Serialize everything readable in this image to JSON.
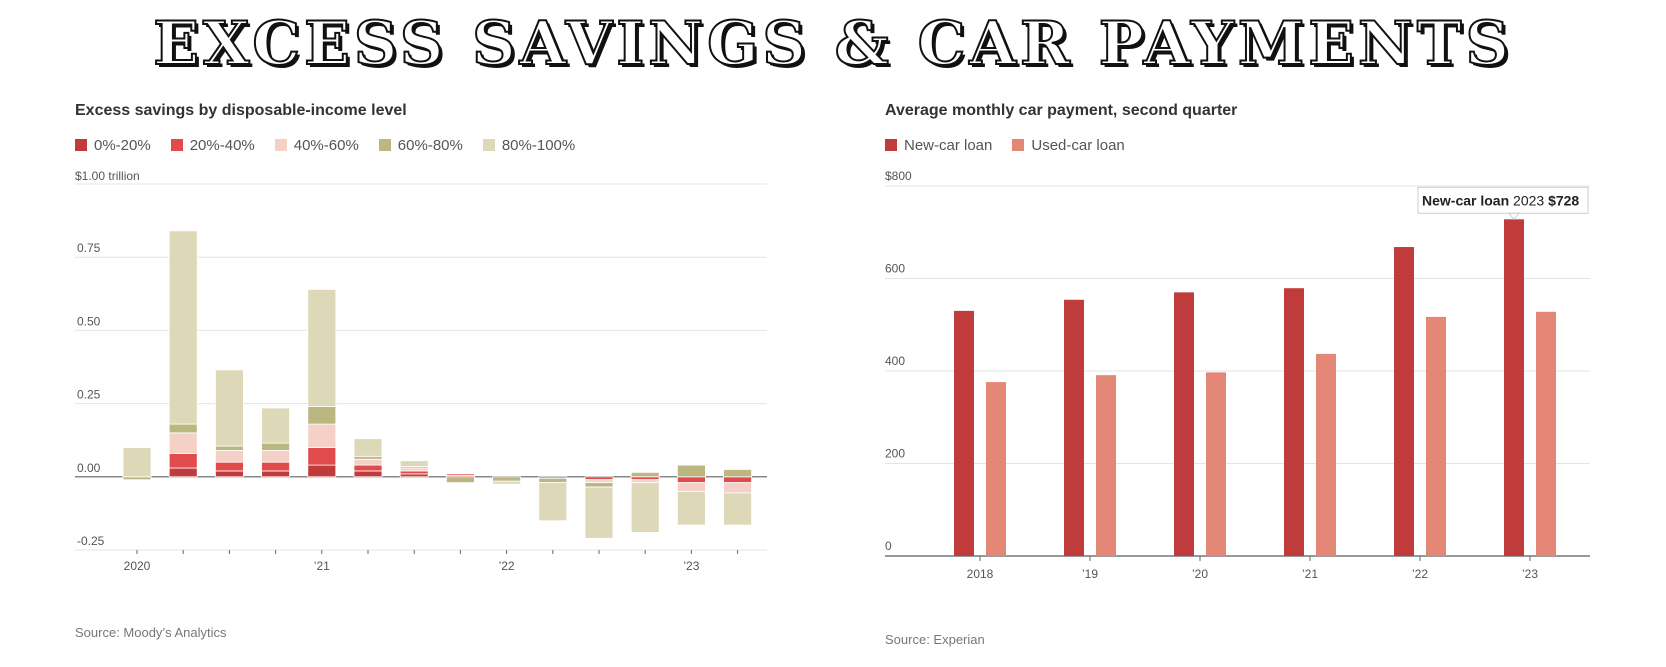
{
  "page_title": "EXCESS SAVINGS & CAR PAYMENTS",
  "chart_data": [
    {
      "type": "bar",
      "stacked": true,
      "title": "Excess savings by disposable-income level",
      "ylabel": "",
      "y_top_label": "$1.00 trillion",
      "ylim": [
        -0.25,
        1.0
      ],
      "y_ticks": [
        0.75,
        0.5,
        0.25,
        0.0,
        -0.25
      ],
      "y_tick_labels": [
        "0.75",
        "0.50",
        "0.25",
        "0.00",
        "-0.25"
      ],
      "x_tick_labels": [
        {
          "label": "2020",
          "index": 0
        },
        {
          "label": "’21",
          "index": 4
        },
        {
          "label": "’22",
          "index": 8
        },
        {
          "label": "’23",
          "index": 12
        }
      ],
      "categories": [
        "Q1 2020",
        "Q2 2020",
        "Q3 2020",
        "Q4 2020",
        "Q1 2021",
        "Q2 2021",
        "Q3 2021",
        "Q4 2021",
        "Q1 2022",
        "Q2 2022",
        "Q3 2022",
        "Q4 2022",
        "Q1 2023",
        "Q2 2023"
      ],
      "legend_position": "top-left",
      "series": [
        {
          "name": "0%-20%",
          "color": "#c03b3b",
          "values": [
            0.0,
            0.03,
            0.02,
            0.02,
            0.04,
            0.02,
            0.01,
            0.005,
            0.0,
            0.0,
            0.0,
            0.0,
            0.0,
            0.0
          ]
        },
        {
          "name": "20%-40%",
          "color": "#e24b4b",
          "values": [
            0.0,
            0.05,
            0.03,
            0.03,
            0.06,
            0.02,
            0.01,
            0.005,
            0.0,
            -0.005,
            -0.01,
            -0.01,
            -0.02,
            -0.02
          ]
        },
        {
          "name": "40%-60%",
          "color": "#f5d0c6",
          "values": [
            0.0,
            0.07,
            0.04,
            0.04,
            0.08,
            0.02,
            0.01,
            0.0,
            0.0,
            0.0,
            -0.01,
            -0.01,
            -0.03,
            -0.035
          ]
        },
        {
          "name": "60%-80%",
          "color": "#bcb780",
          "values": [
            -0.01,
            0.03,
            0.015,
            0.025,
            0.06,
            0.01,
            0.005,
            -0.02,
            -0.015,
            -0.015,
            -0.015,
            0.015,
            0.04,
            0.025
          ]
        },
        {
          "name": "80%-100%",
          "color": "#ddd8b8",
          "values": [
            0.1,
            0.66,
            0.26,
            0.12,
            0.4,
            0.06,
            0.02,
            0.0,
            -0.01,
            -0.13,
            -0.175,
            -0.17,
            -0.115,
            -0.11
          ]
        }
      ],
      "source": "Source: Moody’s Analytics"
    },
    {
      "type": "bar",
      "title": "Average monthly car payment, second quarter",
      "ylim": [
        0,
        800
      ],
      "y_ticks": [
        800,
        600,
        400,
        200,
        0
      ],
      "y_tick_labels": [
        "$800",
        "600",
        "400",
        "200",
        "0"
      ],
      "categories": [
        "2018",
        "’19",
        "’20",
        "’21",
        "’22",
        "’23"
      ],
      "legend_position": "top-left",
      "series": [
        {
          "name": "New-car loan",
          "color": "#c03b3b",
          "values": [
            530,
            554,
            570,
            579,
            668,
            728
          ]
        },
        {
          "name": "Used-car loan",
          "color": "#e58776",
          "values": [
            376,
            391,
            397,
            437,
            517,
            528
          ]
        }
      ],
      "annotation": {
        "series": "New-car loan",
        "year": "2023",
        "value": "$728"
      },
      "source": "Source: Experian"
    }
  ]
}
